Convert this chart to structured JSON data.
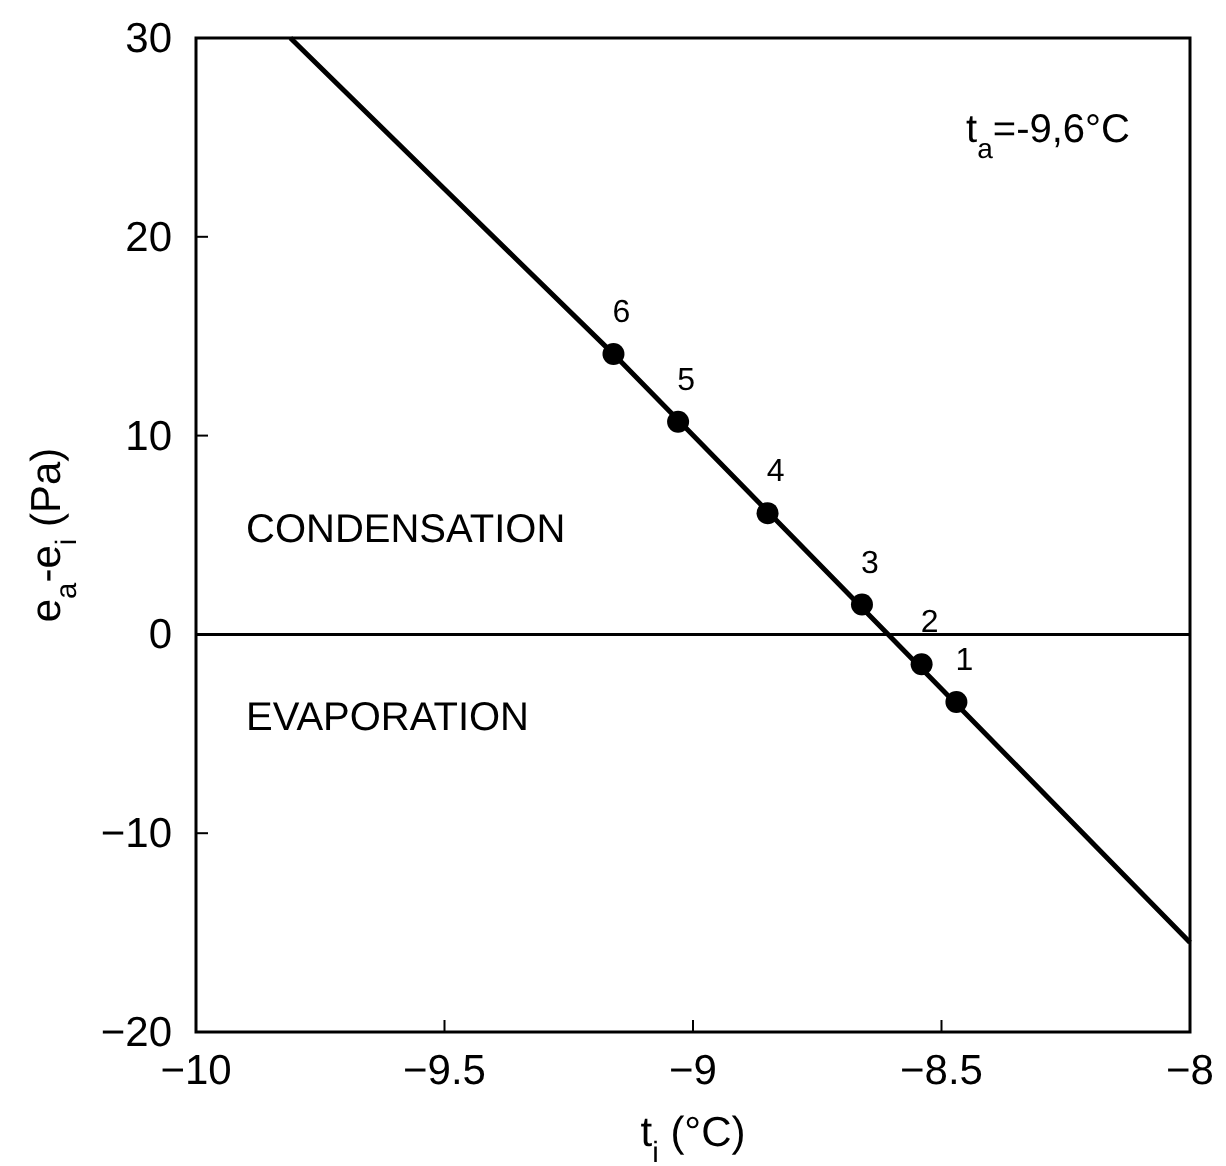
{
  "chart_data": {
    "type": "scatter",
    "xlabel": "t$_{i}$ (°C)",
    "ylabel": "e$_{a}$-e$_{i}$   (Pa)",
    "xlim": [
      -10,
      -8
    ],
    "ylim": [
      -20,
      30
    ],
    "xticks": [
      -10,
      -9.5,
      -9,
      -8.5,
      -8
    ],
    "yticks": [
      -20,
      -10,
      0,
      10,
      20,
      30
    ],
    "grid": false,
    "marker": "circle",
    "series": [
      {
        "type": "line",
        "color": "#000000",
        "x": [
          -9.81,
          -9.5,
          -9.16,
          -8
        ],
        "values": [
          30,
          22.4,
          14.1,
          -15.5
        ],
        "marker": "none",
        "line_style": "solid"
      },
      {
        "color": "#000000",
        "x": [
          -8.47,
          -8.54,
          -8.66,
          -8.85,
          -9.03,
          -9.16
        ],
        "values": [
          -3.4,
          -1.5,
          1.5,
          6.1,
          10.7,
          14.1
        ]
      }
    ],
    "ref_lines": [
      {
        "axis": "y",
        "value": 0,
        "label": null,
        "color": "#000000"
      }
    ],
    "annotations": [
      "t$_{a}$=-9,6°C",
      "CONDENSATION",
      "EVAPORATION",
      {
        "text": "1",
        "x": -8.47,
        "y": -3.4
      },
      {
        "text": "2",
        "x": -8.54,
        "y": -1.5
      },
      {
        "text": "3",
        "x": -8.66,
        "y": 1.5
      },
      {
        "text": "4",
        "x": -8.85,
        "y": 6.1
      },
      {
        "text": "5",
        "x": -9.03,
        "y": 10.7
      },
      {
        "text": "6",
        "x": -9.16,
        "y": 14.1
      }
    ]
  }
}
